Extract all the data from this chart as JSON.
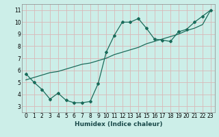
{
  "xlabel": "Humidex (Indice chaleur)",
  "xlim": [
    -0.5,
    23.5
  ],
  "ylim": [
    2.5,
    11.5
  ],
  "xticks": [
    0,
    1,
    2,
    3,
    4,
    5,
    6,
    7,
    8,
    9,
    10,
    11,
    12,
    13,
    14,
    15,
    16,
    17,
    18,
    19,
    20,
    21,
    22,
    23
  ],
  "yticks": [
    3,
    4,
    5,
    6,
    7,
    8,
    9,
    10,
    11
  ],
  "bg_color": "#cceee8",
  "line_color": "#1a6b5a",
  "line1_x": [
    0,
    1,
    2,
    3,
    4,
    5,
    6,
    7,
    8,
    9,
    10,
    11,
    12,
    13,
    14,
    15,
    16,
    17,
    18,
    19,
    20,
    21,
    22,
    23
  ],
  "line1_y": [
    5.7,
    5.0,
    4.4,
    3.6,
    4.1,
    3.5,
    3.3,
    3.3,
    3.4,
    4.9,
    7.5,
    8.9,
    10.0,
    10.0,
    10.3,
    9.5,
    8.6,
    8.5,
    8.4,
    9.2,
    9.4,
    10.0,
    10.5,
    11.0
  ],
  "line2_x": [
    0,
    1,
    2,
    3,
    4,
    5,
    6,
    7,
    8,
    9,
    10,
    11,
    12,
    13,
    14,
    15,
    16,
    17,
    18,
    19,
    20,
    21,
    22,
    23
  ],
  "line2_y": [
    5.2,
    5.4,
    5.6,
    5.8,
    5.9,
    6.1,
    6.3,
    6.5,
    6.6,
    6.8,
    7.0,
    7.3,
    7.5,
    7.7,
    7.9,
    8.2,
    8.4,
    8.6,
    8.8,
    9.0,
    9.3,
    9.5,
    9.8,
    11.0
  ],
  "grid_color": "#b8d8d2",
  "tick_fontsize": 5.5,
  "xlabel_fontsize": 6.5
}
